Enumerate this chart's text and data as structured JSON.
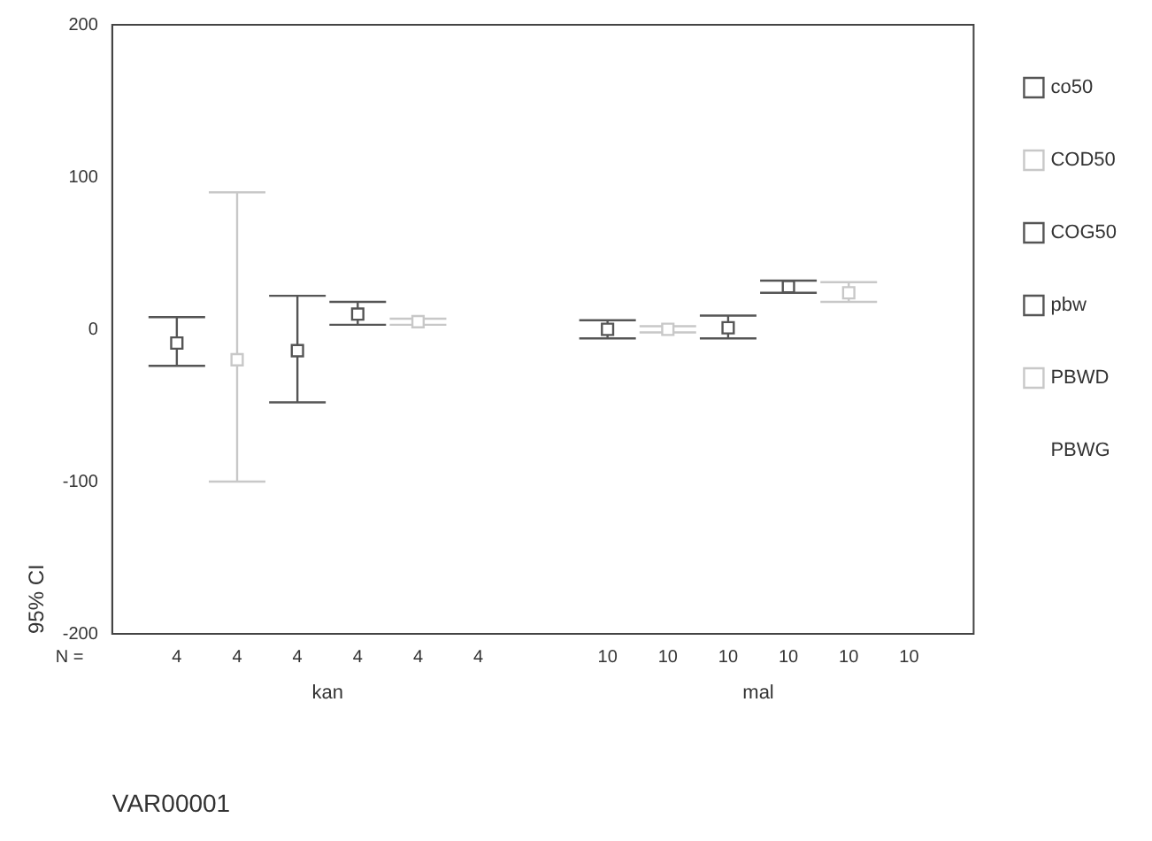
{
  "chart_data": {
    "type": "scatter",
    "xlabel": "VAR00001",
    "ylabel": "95% CI",
    "categories": [
      "kan",
      "mal"
    ],
    "ylim": [
      -200,
      200
    ],
    "yticks": [
      -200,
      -100,
      0,
      100,
      200
    ],
    "grid": false,
    "legend": "right",
    "marker": "square",
    "series": [
      {
        "name": "co50",
        "color": "#555555",
        "values": [
          -9,
          0
        ],
        "errors": [
          [
            -24,
            8
          ],
          [
            -6,
            6
          ]
        ]
      },
      {
        "name": "COD50",
        "color": "#c8c8c8",
        "values": [
          -20,
          0
        ],
        "errors": [
          [
            -100,
            90
          ],
          [
            -2,
            2
          ]
        ]
      },
      {
        "name": "COG50",
        "color": "#555555",
        "values": [
          -14,
          1
        ],
        "errors": [
          [
            -48,
            22
          ],
          [
            -6,
            9
          ]
        ]
      },
      {
        "name": "pbw",
        "color": "#555555",
        "values": [
          10,
          28
        ],
        "errors": [
          [
            3,
            18
          ],
          [
            24,
            32
          ]
        ]
      },
      {
        "name": "PBWD",
        "color": "#c8c8c8",
        "values": [
          5,
          24
        ],
        "errors": [
          [
            3,
            7
          ],
          [
            18,
            31
          ]
        ]
      },
      {
        "name": "PBWG",
        "values": [
          null,
          null
        ],
        "errors": [
          null,
          null
        ]
      }
    ],
    "annotations": [
      "N =",
      "4",
      "4",
      "4",
      "4",
      "4",
      "4",
      "10",
      "10",
      "10",
      "10",
      "10",
      "10"
    ]
  }
}
